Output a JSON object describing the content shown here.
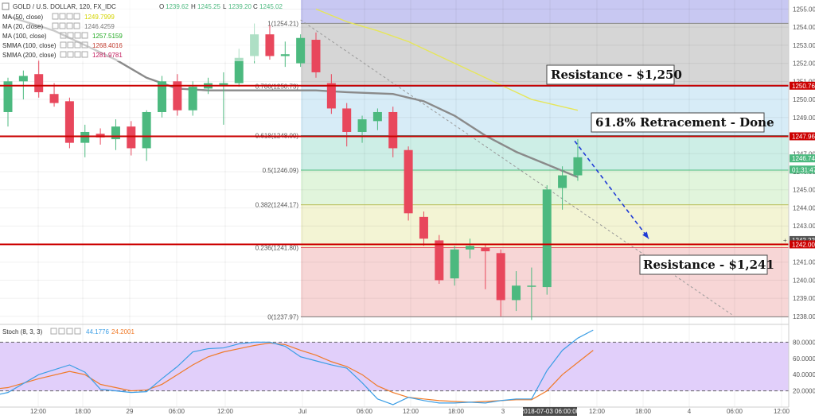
{
  "header": {
    "symbol": "GOLD / U.S. DOLLAR, 120, FX_IDC",
    "open_label": "O",
    "open": "1239.62",
    "high_label": "H",
    "high": "1245.25",
    "low_label": "L",
    "low": "1239.20",
    "close_label": "C",
    "close": "1245.02"
  },
  "indicators": [
    {
      "name": "MA (50, close)",
      "value": "1249.7999",
      "color": "#d4d400"
    },
    {
      "name": "MA (20, close)",
      "value": "1246.4259",
      "color": "#777777"
    },
    {
      "name": "MA (100, close)",
      "value": "1257.5159",
      "color": "#22aa22"
    },
    {
      "name": "SMMA (100, close)",
      "value": "1268.4016",
      "color": "#c0392b"
    },
    {
      "name": "SMMA (200, close)",
      "value": "1281.9781",
      "color": "#c2185b"
    }
  ],
  "stoch": {
    "name": "Stoch (8, 3, 3)",
    "k_value": "44.1776",
    "d_value": "24.2001",
    "k_color": "#3c9ee5",
    "d_color": "#f07a28"
  },
  "callouts": {
    "resistance_top": "Resistance - $1,250",
    "retracement": "61.8% Retracement - Done",
    "resistance_bottom": "Resistance - $1,241"
  },
  "colors": {
    "up": "#4cb97f",
    "down": "#e8475c",
    "red_line": "#cc0000",
    "ma20": "#8a8a8a",
    "ma50": "#e6e65a"
  },
  "chart_data": {
    "type": "candlestick",
    "y_range": [
      1237.6,
      1255.5
    ],
    "price_ticks": [
      "1255.00",
      "1254.00",
      "1253.00",
      "1252.00",
      "1251.00",
      "1250.00",
      "1249.00",
      "1248.00",
      "1247.00",
      "1246.00",
      "1245.00",
      "1244.00",
      "1243.00",
      "1242.00",
      "1241.00",
      "1240.00",
      "1239.00",
      "1238.00"
    ],
    "price_badges": [
      {
        "label": "1250.76",
        "value": 1250.76,
        "color": "#cc0000"
      },
      {
        "label": "1247.96",
        "value": 1247.96,
        "color": "#cc0000"
      },
      {
        "label": "1246.74",
        "value": 1246.74,
        "color": "#4cb97f"
      },
      {
        "label": "01:31:47",
        "value": 1246.12,
        "color": "#4cb97f"
      },
      {
        "label": "1242.22",
        "value": 1242.22,
        "color": "#555555"
      },
      {
        "label": "1242.00",
        "value": 1241.98,
        "color": "#cc0000"
      }
    ],
    "time_ticks": [
      "12:00",
      "18:00",
      "29",
      "06:00",
      "12:00",
      "Jul",
      "06:00",
      "12:00",
      "18:00",
      "3",
      "2018-07-03 06:00:00",
      "12:00",
      "18:00",
      "4",
      "06:00",
      "12:00"
    ],
    "fib_levels": [
      {
        "label": "1(1254.21)",
        "value": 1254.21
      },
      {
        "label": "0.786(1250.73)",
        "value": 1250.73
      },
      {
        "label": "0.618(1248.00)",
        "value": 1248.0
      },
      {
        "label": "0.5(1246.09)",
        "value": 1246.09
      },
      {
        "label": "0.382(1244.17)",
        "value": 1244.17
      },
      {
        "label": "0.236(1241.80)",
        "value": 1241.8
      },
      {
        "label": "0(1237.97)",
        "value": 1237.97
      }
    ],
    "horizontal_lines": [
      1250.76,
      1247.96,
      1241.98
    ],
    "candles": [
      {
        "o": 1249.3,
        "h": 1251.2,
        "l": 1248.5,
        "c": 1251.0
      },
      {
        "o": 1251.0,
        "h": 1251.6,
        "l": 1250.0,
        "c": 1251.3
      },
      {
        "o": 1251.4,
        "h": 1252.2,
        "l": 1250.1,
        "c": 1250.4
      },
      {
        "o": 1250.3,
        "h": 1250.9,
        "l": 1249.6,
        "c": 1249.8
      },
      {
        "o": 1249.9,
        "h": 1250.1,
        "l": 1247.3,
        "c": 1247.6
      },
      {
        "o": 1247.6,
        "h": 1248.6,
        "l": 1246.8,
        "c": 1248.2
      },
      {
        "o": 1248.1,
        "h": 1248.4,
        "l": 1247.5,
        "c": 1247.9
      },
      {
        "o": 1247.8,
        "h": 1248.9,
        "l": 1247.2,
        "c": 1248.5
      },
      {
        "o": 1248.5,
        "h": 1248.8,
        "l": 1246.9,
        "c": 1247.3
      },
      {
        "o": 1247.3,
        "h": 1249.4,
        "l": 1246.6,
        "c": 1249.3
      },
      {
        "o": 1249.3,
        "h": 1251.3,
        "l": 1249.0,
        "c": 1251.0
      },
      {
        "o": 1251.0,
        "h": 1251.4,
        "l": 1249.1,
        "c": 1249.4
      },
      {
        "o": 1249.4,
        "h": 1251.0,
        "l": 1249.1,
        "c": 1250.7
      },
      {
        "o": 1250.6,
        "h": 1251.2,
        "l": 1250.3,
        "c": 1250.9
      },
      {
        "o": 1250.8,
        "h": 1251.5,
        "l": 1248.6,
        "c": 1250.9
      },
      {
        "o": 1250.9,
        "h": 1252.8,
        "l": 1250.7,
        "c": 1252.3
      },
      {
        "o": 1252.4,
        "h": 1254.2,
        "l": 1252.0,
        "c": 1253.6
      },
      {
        "o": 1253.6,
        "h": 1254.1,
        "l": 1252.2,
        "c": 1252.4
      },
      {
        "o": 1252.4,
        "h": 1253.2,
        "l": 1251.8,
        "c": 1252.5
      },
      {
        "o": 1252.0,
        "h": 1253.6,
        "l": 1251.8,
        "c": 1253.4
      },
      {
        "o": 1253.3,
        "h": 1253.7,
        "l": 1251.2,
        "c": 1251.5
      },
      {
        "o": 1250.9,
        "h": 1251.4,
        "l": 1249.2,
        "c": 1249.5
      },
      {
        "o": 1249.5,
        "h": 1249.8,
        "l": 1247.4,
        "c": 1248.2
      },
      {
        "o": 1248.2,
        "h": 1249.1,
        "l": 1247.6,
        "c": 1248.9
      },
      {
        "o": 1248.8,
        "h": 1249.5,
        "l": 1248.3,
        "c": 1249.3
      },
      {
        "o": 1249.3,
        "h": 1249.6,
        "l": 1246.8,
        "c": 1247.3
      },
      {
        "o": 1247.2,
        "h": 1247.4,
        "l": 1243.3,
        "c": 1243.7
      },
      {
        "o": 1243.5,
        "h": 1243.8,
        "l": 1241.9,
        "c": 1242.3
      },
      {
        "o": 1242.2,
        "h": 1242.5,
        "l": 1239.8,
        "c": 1240.0
      },
      {
        "o": 1240.1,
        "h": 1241.9,
        "l": 1239.7,
        "c": 1241.7
      },
      {
        "o": 1241.7,
        "h": 1242.3,
        "l": 1241.2,
        "c": 1241.9
      },
      {
        "o": 1241.8,
        "h": 1242.0,
        "l": 1239.5,
        "c": 1241.6
      },
      {
        "o": 1241.5,
        "h": 1241.7,
        "l": 1238.0,
        "c": 1238.9
      },
      {
        "o": 1238.9,
        "h": 1240.5,
        "l": 1238.3,
        "c": 1239.7
      },
      {
        "o": 1239.7,
        "h": 1240.7,
        "l": 1237.8,
        "c": 1239.7
      },
      {
        "o": 1239.62,
        "h": 1245.25,
        "l": 1239.2,
        "c": 1245.02
      },
      {
        "o": 1245.1,
        "h": 1246.3,
        "l": 1243.9,
        "c": 1245.8
      },
      {
        "o": 1245.8,
        "h": 1247.8,
        "l": 1245.5,
        "c": 1246.8
      }
    ],
    "ma20": [
      [
        0,
        1254.6
      ],
      [
        3,
        1253.8
      ],
      [
        5,
        1253.0
      ],
      [
        7,
        1252.2
      ],
      [
        9,
        1251.2
      ],
      [
        11,
        1250.6
      ],
      [
        13,
        1250.5
      ],
      [
        16,
        1250.5
      ],
      [
        20,
        1250.5
      ],
      [
        22,
        1250.4
      ],
      [
        25,
        1250.3
      ],
      [
        27,
        1249.9
      ],
      [
        29,
        1249.1
      ],
      [
        31,
        1248.0
      ],
      [
        33,
        1247.1
      ],
      [
        35,
        1246.4
      ],
      [
        37,
        1245.7
      ]
    ],
    "ma50": [
      [
        20,
        1255.0
      ],
      [
        22,
        1254.3
      ],
      [
        24,
        1253.8
      ],
      [
        26,
        1253.2
      ],
      [
        28,
        1252.4
      ],
      [
        30,
        1251.6
      ],
      [
        32,
        1250.8
      ],
      [
        34,
        1250.0
      ],
      [
        36,
        1249.6
      ],
      [
        37,
        1249.4
      ]
    ],
    "dashed_trend": [
      [
        19,
        1254.4
      ],
      [
        47,
        1238.1
      ]
    ],
    "forecast_arrow": {
      "from": [
        36.8,
        1247.7
      ],
      "to": [
        41.6,
        1242.3
      ]
    },
    "stoch_range": [
      0,
      100
    ],
    "stoch_ticks": [
      "80.0000",
      "60.0000",
      "40.0000",
      "20.0000"
    ],
    "stoch_bands": {
      "upper": 80,
      "lower": 20
    },
    "stoch_k": [
      [
        -2,
        10
      ],
      [
        0,
        18
      ],
      [
        2,
        40
      ],
      [
        4,
        52
      ],
      [
        5,
        43
      ],
      [
        6,
        22
      ],
      [
        7,
        20
      ],
      [
        8,
        18
      ],
      [
        9,
        19
      ],
      [
        10,
        35
      ],
      [
        11,
        50
      ],
      [
        12,
        68
      ],
      [
        13,
        72
      ],
      [
        14,
        73
      ],
      [
        15,
        78
      ],
      [
        16,
        80
      ],
      [
        17,
        80
      ],
      [
        18,
        75
      ],
      [
        19,
        62
      ],
      [
        20,
        57
      ],
      [
        21,
        52
      ],
      [
        22,
        48
      ],
      [
        23,
        30
      ],
      [
        24,
        10
      ],
      [
        25,
        3
      ],
      [
        26,
        12
      ],
      [
        27,
        8
      ],
      [
        28,
        5
      ],
      [
        29,
        5
      ],
      [
        30,
        6
      ],
      [
        31,
        5
      ],
      [
        32,
        8
      ],
      [
        33,
        10
      ],
      [
        34,
        10
      ],
      [
        35,
        45
      ],
      [
        36,
        70
      ],
      [
        37,
        85
      ],
      [
        38,
        95
      ]
    ],
    "stoch_d": [
      [
        -2,
        20
      ],
      [
        0,
        24
      ],
      [
        2,
        35
      ],
      [
        4,
        44
      ],
      [
        5,
        40
      ],
      [
        6,
        28
      ],
      [
        7,
        24
      ],
      [
        8,
        20
      ],
      [
        9,
        21
      ],
      [
        10,
        28
      ],
      [
        11,
        40
      ],
      [
        12,
        52
      ],
      [
        13,
        62
      ],
      [
        14,
        68
      ],
      [
        15,
        72
      ],
      [
        16,
        76
      ],
      [
        17,
        79
      ],
      [
        18,
        77
      ],
      [
        19,
        70
      ],
      [
        20,
        64
      ],
      [
        21,
        56
      ],
      [
        22,
        50
      ],
      [
        23,
        40
      ],
      [
        24,
        26
      ],
      [
        25,
        18
      ],
      [
        26,
        12
      ],
      [
        27,
        10
      ],
      [
        28,
        8
      ],
      [
        29,
        7
      ],
      [
        30,
        6
      ],
      [
        31,
        7
      ],
      [
        32,
        8
      ],
      [
        33,
        9
      ],
      [
        34,
        9
      ],
      [
        35,
        20
      ],
      [
        36,
        40
      ],
      [
        37,
        55
      ],
      [
        38,
        70
      ]
    ]
  }
}
